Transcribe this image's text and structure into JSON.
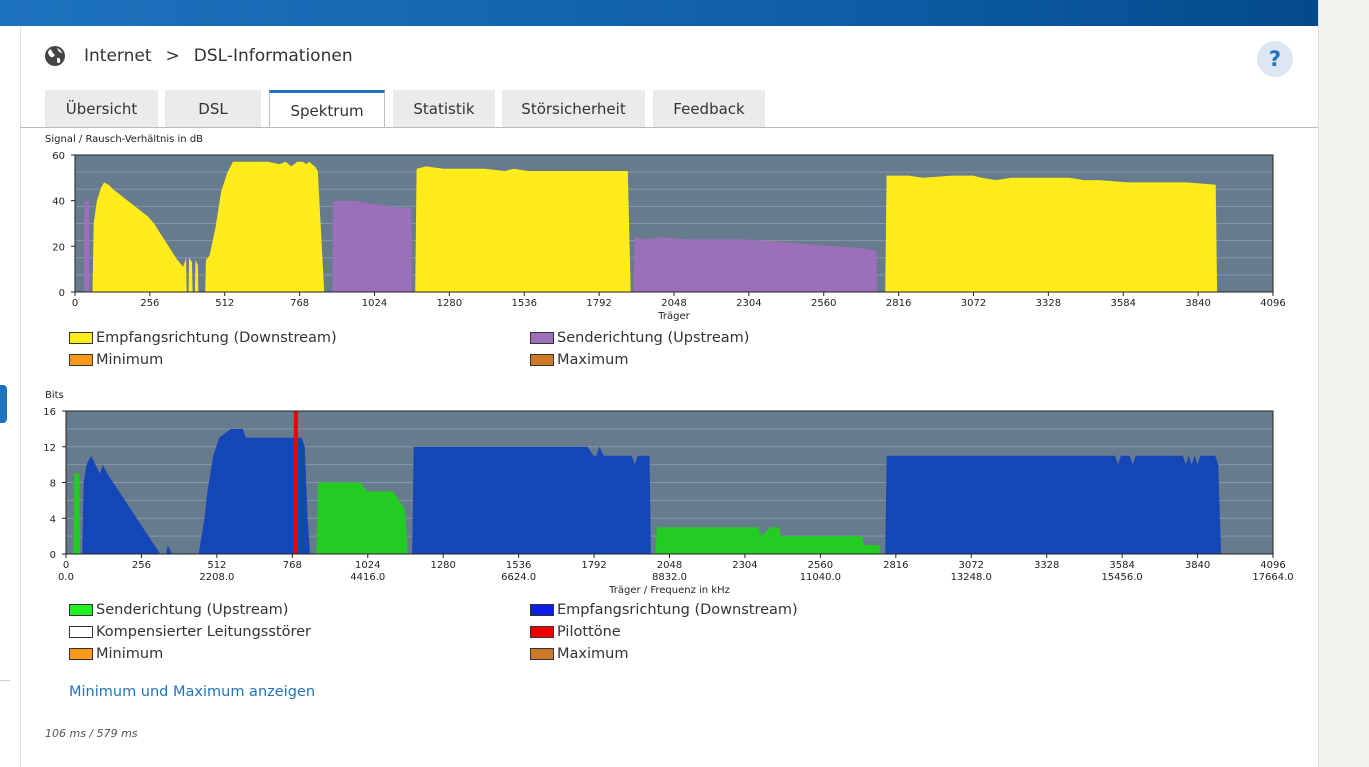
{
  "breadcrumb": {
    "section": "Internet",
    "separator": ">",
    "page": "DSL-Informationen",
    "icon": "globe-icon"
  },
  "help": {
    "label": "?",
    "icon": "help-icon"
  },
  "tabs": [
    {
      "label": "Übersicht",
      "active": false
    },
    {
      "label": "DSL",
      "active": false
    },
    {
      "label": "Spektrum",
      "active": true
    },
    {
      "label": "Statistik",
      "active": false
    },
    {
      "label": "Störsicherheit",
      "active": false
    },
    {
      "label": "Feedback",
      "active": false
    }
  ],
  "colors": {
    "plot_bg": "#667b8d",
    "downstream_snr": "#ffec1a",
    "upstream_snr": "#9c6fb9",
    "downstream_bits": "#1446b8",
    "upstream_bits": "#22cc22",
    "pilot": "#ee0000",
    "minimum": "#ff9a1a",
    "maximum": "#cc7a2a",
    "link": "#1e73be"
  },
  "chart_data": [
    {
      "type": "area",
      "title": "Signal / Rausch-Verhältnis in dB",
      "xlabel": "Träger",
      "xlim": [
        0,
        4096
      ],
      "ylim": [
        0,
        60
      ],
      "xticks": [
        0,
        256,
        512,
        768,
        1024,
        1280,
        1536,
        1792,
        2048,
        2304,
        2560,
        2816,
        3072,
        3328,
        3584,
        3840,
        4096
      ],
      "yticks": [
        0,
        20,
        40,
        60
      ],
      "grid": true,
      "legend_position": "bottom",
      "series": [
        {
          "name": "Senderichtung (Upstream)",
          "color_key": "upstream_snr",
          "points": [
            [
              30,
              0
            ],
            [
              32,
              40
            ],
            [
              48,
              40
            ],
            [
              50,
              0
            ]
          ]
        },
        {
          "name": "Empfangsrichtung (Downstream)",
          "color_key": "downstream_snr",
          "points": [
            [
              60,
              0
            ],
            [
              64,
              30
            ],
            [
              75,
              40
            ],
            [
              90,
              46
            ],
            [
              100,
              48
            ],
            [
              115,
              47
            ],
            [
              130,
              45
            ],
            [
              150,
              43
            ],
            [
              170,
              41
            ],
            [
              190,
              39
            ],
            [
              210,
              37
            ],
            [
              230,
              35
            ],
            [
              250,
              33
            ],
            [
              270,
              30
            ],
            [
              290,
              26
            ],
            [
              310,
              22
            ],
            [
              330,
              18
            ],
            [
              350,
              14
            ],
            [
              370,
              11
            ],
            [
              380,
              15
            ],
            [
              382,
              0
            ],
            [
              388,
              0
            ],
            [
              390,
              15
            ],
            [
              400,
              13
            ],
            [
              402,
              0
            ],
            [
              410,
              0
            ],
            [
              412,
              14
            ],
            [
              420,
              12
            ],
            [
              422,
              0
            ],
            [
              445,
              0
            ],
            [
              448,
              14
            ],
            [
              460,
              16
            ],
            [
              470,
              22
            ],
            [
              480,
              28
            ],
            [
              500,
              44
            ],
            [
              520,
              52
            ],
            [
              540,
              57
            ],
            [
              560,
              57
            ],
            [
              600,
              57
            ],
            [
              660,
              57
            ],
            [
              700,
              56
            ],
            [
              720,
              57
            ],
            [
              740,
              55
            ],
            [
              760,
              57
            ],
            [
              780,
              57
            ],
            [
              790,
              56
            ],
            [
              800,
              57
            ],
            [
              820,
              55
            ],
            [
              830,
              53
            ],
            [
              852,
              0
            ]
          ]
        },
        {
          "name": "Senderichtung (Upstream)",
          "color_key": "upstream_snr",
          "points": [
            [
              880,
              0
            ],
            [
              882,
              40
            ],
            [
              960,
              40
            ],
            [
              1000,
              39
            ],
            [
              1050,
              38
            ],
            [
              1100,
              37
            ],
            [
              1140,
              37
            ],
            [
              1150,
              36
            ],
            [
              1152,
              0
            ]
          ]
        },
        {
          "name": "Empfangsrichtung (Downstream)",
          "color_key": "downstream_snr",
          "points": [
            [
              1163,
              0
            ],
            [
              1168,
              54
            ],
            [
              1200,
              55
            ],
            [
              1260,
              54
            ],
            [
              1300,
              54
            ],
            [
              1400,
              54
            ],
            [
              1470,
              53
            ],
            [
              1500,
              54
            ],
            [
              1550,
              53
            ],
            [
              1700,
              53
            ],
            [
              1890,
              53
            ],
            [
              1900,
              0
            ]
          ]
        },
        {
          "name": "Senderichtung (Upstream)",
          "color_key": "upstream_snr",
          "points": [
            [
              1910,
              0
            ],
            [
              1913,
              24
            ],
            [
              1950,
              23
            ],
            [
              2000,
              24
            ],
            [
              2100,
              23
            ],
            [
              2200,
              23
            ],
            [
              2300,
              23
            ],
            [
              2400,
              22
            ],
            [
              2500,
              21
            ],
            [
              2600,
              20
            ],
            [
              2700,
              19
            ],
            [
              2740,
              18
            ],
            [
              2742,
              0
            ]
          ]
        },
        {
          "name": "Empfangsrichtung (Downstream)",
          "color_key": "downstream_snr",
          "points": [
            [
              2770,
              0
            ],
            [
              2775,
              51
            ],
            [
              2850,
              51
            ],
            [
              2900,
              50
            ],
            [
              3000,
              51
            ],
            [
              3070,
              51
            ],
            [
              3100,
              50
            ],
            [
              3150,
              49
            ],
            [
              3200,
              50
            ],
            [
              3400,
              50
            ],
            [
              3450,
              49
            ],
            [
              3500,
              49
            ],
            [
              3600,
              48
            ],
            [
              3800,
              48
            ],
            [
              3900,
              47
            ],
            [
              3905,
              0
            ]
          ]
        }
      ],
      "legend": [
        {
          "label": "Empfangsrichtung (Downstream)",
          "color_key": "downstream_snr"
        },
        {
          "label": "Senderichtung (Upstream)",
          "color_key": "upstream_snr"
        },
        {
          "label": "Minimum",
          "color_key": "minimum"
        },
        {
          "label": "Maximum",
          "color_key": "maximum"
        }
      ]
    },
    {
      "type": "area",
      "title": "Bits",
      "xlabel": "Träger / Frequenz in kHz",
      "xlim": [
        0,
        4096
      ],
      "ylim": [
        0,
        16
      ],
      "xticks": [
        0,
        256,
        512,
        768,
        1024,
        1280,
        1536,
        1792,
        2048,
        2304,
        2560,
        2816,
        3072,
        3328,
        3584,
        3840,
        4096
      ],
      "xticks_khz": [
        [
          0,
          "0.0"
        ],
        [
          512,
          "2208.0"
        ],
        [
          1024,
          "4416.0"
        ],
        [
          1536,
          "6624.0"
        ],
        [
          2048,
          "8832.0"
        ],
        [
          2560,
          "11040.0"
        ],
        [
          3072,
          "13248.0"
        ],
        [
          3584,
          "15456.0"
        ],
        [
          4096,
          "17664.0"
        ]
      ],
      "yticks": [
        0,
        4,
        8,
        12,
        16
      ],
      "grid": true,
      "legend_position": "bottom",
      "pilot_tone_carrier": 780,
      "series": [
        {
          "name": "Senderichtung (Upstream)",
          "color_key": "upstream_bits",
          "points": [
            [
              25,
              0
            ],
            [
              28,
              9
            ],
            [
              45,
              9
            ],
            [
              48,
              0
            ]
          ]
        },
        {
          "name": "Empfangsrichtung (Downstream)",
          "color_key": "downstream_bits",
          "points": [
            [
              55,
              0
            ],
            [
              60,
              8
            ],
            [
              70,
              10
            ],
            [
              85,
              11
            ],
            [
              100,
              10
            ],
            [
              115,
              9
            ],
            [
              125,
              10
            ],
            [
              140,
              9
            ],
            [
              160,
              8
            ],
            [
              180,
              7
            ],
            [
              200,
              6
            ],
            [
              220,
              5
            ],
            [
              240,
              4
            ],
            [
              260,
              3
            ],
            [
              280,
              2
            ],
            [
              300,
              1
            ],
            [
              320,
              0
            ],
            [
              340,
              0
            ],
            [
              345,
              1
            ],
            [
              360,
              0
            ],
            [
              450,
              0
            ],
            [
              460,
              2
            ],
            [
              470,
              4
            ],
            [
              480,
              7
            ],
            [
              490,
              9
            ],
            [
              500,
              11
            ],
            [
              510,
              12
            ],
            [
              520,
              13
            ],
            [
              560,
              14
            ],
            [
              600,
              14
            ],
            [
              610,
              13
            ],
            [
              780,
              13
            ],
            [
              800,
              13
            ],
            [
              810,
              12
            ],
            [
              820,
              4
            ],
            [
              828,
              0
            ]
          ]
        },
        {
          "name": "Senderichtung (Upstream)",
          "color_key": "upstream_bits",
          "points": [
            [
              850,
              0
            ],
            [
              855,
              8
            ],
            [
              1000,
              8
            ],
            [
              1020,
              7
            ],
            [
              1110,
              7
            ],
            [
              1130,
              6
            ],
            [
              1150,
              5
            ],
            [
              1160,
              0
            ]
          ]
        },
        {
          "name": "Empfangsrichtung (Downstream)",
          "color_key": "downstream_bits",
          "points": [
            [
              1175,
              0
            ],
            [
              1180,
              12
            ],
            [
              1300,
              12
            ],
            [
              1500,
              12
            ],
            [
              1600,
              12
            ],
            [
              1770,
              12
            ],
            [
              1790,
              11
            ],
            [
              1800,
              11
            ],
            [
              1810,
              12
            ],
            [
              1825,
              11
            ],
            [
              1850,
              11
            ],
            [
              1860,
              11
            ],
            [
              1920,
              11
            ],
            [
              1930,
              10
            ],
            [
              1940,
              11
            ],
            [
              1980,
              11
            ],
            [
              1985,
              0
            ]
          ]
        },
        {
          "name": "Senderichtung (Upstream)",
          "color_key": "upstream_bits",
          "points": [
            [
              2000,
              0
            ],
            [
              2005,
              3
            ],
            [
              2100,
              3
            ],
            [
              2200,
              3
            ],
            [
              2300,
              3
            ],
            [
              2350,
              3
            ],
            [
              2360,
              2
            ],
            [
              2390,
              3
            ],
            [
              2420,
              3
            ],
            [
              2425,
              2
            ],
            [
              2700,
              2
            ],
            [
              2710,
              1
            ],
            [
              2760,
              1
            ],
            [
              2765,
              0
            ]
          ]
        },
        {
          "name": "Empfangsrichtung (Downstream)",
          "color_key": "downstream_bits",
          "points": [
            [
              2780,
              0
            ],
            [
              2785,
              11
            ],
            [
              2900,
              11
            ],
            [
              3000,
              11
            ],
            [
              3100,
              11
            ],
            [
              3200,
              11
            ],
            [
              3300,
              11
            ],
            [
              3400,
              11
            ],
            [
              3560,
              11
            ],
            [
              3570,
              10
            ],
            [
              3580,
              11
            ],
            [
              3610,
              11
            ],
            [
              3620,
              10
            ],
            [
              3630,
              11
            ],
            [
              3700,
              11
            ],
            [
              3790,
              11
            ],
            [
              3800,
              10
            ],
            [
              3810,
              11
            ],
            [
              3820,
              10
            ],
            [
              3830,
              11
            ],
            [
              3840,
              10
            ],
            [
              3850,
              11
            ],
            [
              3900,
              11
            ],
            [
              3910,
              10
            ],
            [
              3920,
              0
            ]
          ]
        }
      ],
      "legend": [
        {
          "label": "Senderichtung (Upstream)",
          "color_key": "upstream_bits"
        },
        {
          "label": "Empfangsrichtung (Downstream)",
          "color_key": "downstream_bits"
        },
        {
          "label": "Kompensierter Leitungsstörer",
          "color_key": "white"
        },
        {
          "label": "Pilottöne",
          "color_key": "pilot"
        },
        {
          "label": "Minimum",
          "color_key": "minimum"
        },
        {
          "label": "Maximum",
          "color_key": "maximum"
        }
      ]
    }
  ],
  "link": {
    "label": "Minimum und Maximum anzeigen"
  },
  "timing": {
    "text": "106 ms / 579 ms"
  }
}
